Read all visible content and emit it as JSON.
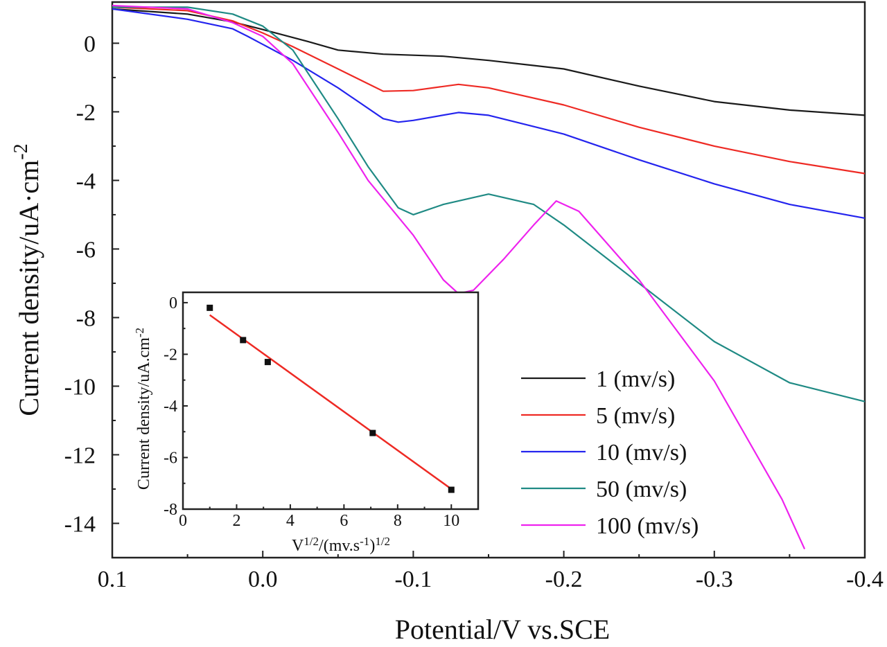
{
  "chart_data": [
    {
      "type": "line",
      "xlabel": "Potential/V vs.SCE",
      "ylabel": "Current density/uA·cm",
      "ylabel_sup": "-2",
      "xlim": [
        0.1,
        -0.4
      ],
      "ylim": [
        -15,
        1.2
      ],
      "x_ticks": [
        0.1,
        0.0,
        -0.1,
        -0.2,
        -0.3,
        -0.4
      ],
      "x_tick_labels": [
        "0.1",
        "0.0",
        "-0.1",
        "-0.2",
        "-0.3",
        "-0.4"
      ],
      "y_ticks": [
        0,
        -2,
        -4,
        -6,
        -8,
        -10,
        -12,
        -14
      ],
      "y_tick_labels": [
        "0",
        "-2",
        "-4",
        "-6",
        "-8",
        "-10",
        "-12",
        "-14"
      ],
      "grid": false,
      "legend_placement": "bottom-right",
      "series": [
        {
          "name": "1 (mv/s)",
          "color": "#1a1a1a",
          "points": [
            [
              0.1,
              1.0
            ],
            [
              0.05,
              0.85
            ],
            [
              0.02,
              0.62
            ],
            [
              0.0,
              0.4
            ],
            [
              -0.03,
              0.05
            ],
            [
              -0.05,
              -0.2
            ],
            [
              -0.08,
              -0.32
            ],
            [
              -0.12,
              -0.38
            ],
            [
              -0.15,
              -0.5
            ],
            [
              -0.2,
              -0.75
            ],
            [
              -0.25,
              -1.25
            ],
            [
              -0.3,
              -1.7
            ],
            [
              -0.35,
              -1.95
            ],
            [
              -0.4,
              -2.1
            ]
          ]
        },
        {
          "name": "5 (mv/s)",
          "color": "#ee2a24",
          "points": [
            [
              0.1,
              1.05
            ],
            [
              0.05,
              0.95
            ],
            [
              0.02,
              0.65
            ],
            [
              0.0,
              0.3
            ],
            [
              -0.02,
              -0.1
            ],
            [
              -0.05,
              -0.75
            ],
            [
              -0.08,
              -1.4
            ],
            [
              -0.1,
              -1.38
            ],
            [
              -0.13,
              -1.2
            ],
            [
              -0.15,
              -1.3
            ],
            [
              -0.2,
              -1.8
            ],
            [
              -0.25,
              -2.45
            ],
            [
              -0.3,
              -3.0
            ],
            [
              -0.35,
              -3.45
            ],
            [
              -0.4,
              -3.8
            ]
          ]
        },
        {
          "name": "10 (mv/s)",
          "color": "#2424ee",
          "points": [
            [
              0.1,
              1.0
            ],
            [
              0.05,
              0.7
            ],
            [
              0.02,
              0.42
            ],
            [
              0.01,
              0.2
            ],
            [
              -0.02,
              -0.5
            ],
            [
              -0.05,
              -1.3
            ],
            [
              -0.08,
              -2.2
            ],
            [
              -0.09,
              -2.3
            ],
            [
              -0.1,
              -2.25
            ],
            [
              -0.13,
              -2.02
            ],
            [
              -0.15,
              -2.1
            ],
            [
              -0.2,
              -2.65
            ],
            [
              -0.25,
              -3.4
            ],
            [
              -0.3,
              -4.1
            ],
            [
              -0.35,
              -4.7
            ],
            [
              -0.4,
              -5.1
            ]
          ]
        },
        {
          "name": "50 (mv/s)",
          "color": "#1f8a84",
          "points": [
            [
              0.1,
              1.05
            ],
            [
              0.05,
              1.05
            ],
            [
              0.02,
              0.85
            ],
            [
              0.0,
              0.5
            ],
            [
              -0.02,
              -0.2
            ],
            [
              -0.05,
              -2.2
            ],
            [
              -0.07,
              -3.6
            ],
            [
              -0.09,
              -4.8
            ],
            [
              -0.1,
              -5.0
            ],
            [
              -0.12,
              -4.7
            ],
            [
              -0.15,
              -4.4
            ],
            [
              -0.18,
              -4.7
            ],
            [
              -0.2,
              -5.3
            ],
            [
              -0.25,
              -7.0
            ],
            [
              -0.3,
              -8.7
            ],
            [
              -0.35,
              -9.9
            ],
            [
              -0.4,
              -10.45
            ]
          ]
        },
        {
          "name": "100 (mv/s)",
          "color": "#ee22ee",
          "points": [
            [
              0.1,
              1.1
            ],
            [
              0.05,
              1.0
            ],
            [
              0.02,
              0.6
            ],
            [
              0.0,
              0.2
            ],
            [
              -0.02,
              -0.6
            ],
            [
              -0.05,
              -2.6
            ],
            [
              -0.07,
              -4.0
            ],
            [
              -0.1,
              -5.6
            ],
            [
              -0.12,
              -6.9
            ],
            [
              -0.13,
              -7.3
            ],
            [
              -0.14,
              -7.2
            ],
            [
              -0.16,
              -6.3
            ],
            [
              -0.18,
              -5.3
            ],
            [
              -0.195,
              -4.6
            ],
            [
              -0.21,
              -4.9
            ],
            [
              -0.25,
              -6.9
            ],
            [
              -0.3,
              -9.85
            ],
            [
              -0.345,
              -13.3
            ],
            [
              -0.36,
              -14.75
            ]
          ]
        }
      ]
    },
    {
      "type": "scatter",
      "xlabel": "V",
      "xlabel_sup1": "1/2",
      "xlabel_mid": "/(mv.s",
      "xlabel_sup2": "-1",
      "xlabel_end": ")",
      "xlabel_sup3": "1/2",
      "ylabel": "Current density/uA.cm",
      "ylabel_sup": "-2",
      "xlim": [
        0,
        11
      ],
      "ylim": [
        -8,
        0.4
      ],
      "x_ticks": [
        0,
        2,
        4,
        6,
        8,
        10
      ],
      "x_tick_labels": [
        "0",
        "2",
        "4",
        "6",
        "8",
        "10"
      ],
      "y_ticks": [
        0,
        -2,
        -4,
        -6,
        -8
      ],
      "y_tick_labels": [
        "0",
        "-2",
        "-4",
        "-6",
        "-8"
      ],
      "grid": false,
      "points": [
        [
          1,
          -0.2
        ],
        [
          2.24,
          -1.45
        ],
        [
          3.16,
          -2.3
        ],
        [
          7.07,
          -5.05
        ],
        [
          10,
          -7.25
        ]
      ],
      "marker_color": "#111111",
      "fit_line": {
        "color": "#ee2a24",
        "points": [
          [
            1,
            -0.48
          ],
          [
            10,
            -7.22
          ]
        ]
      }
    }
  ]
}
